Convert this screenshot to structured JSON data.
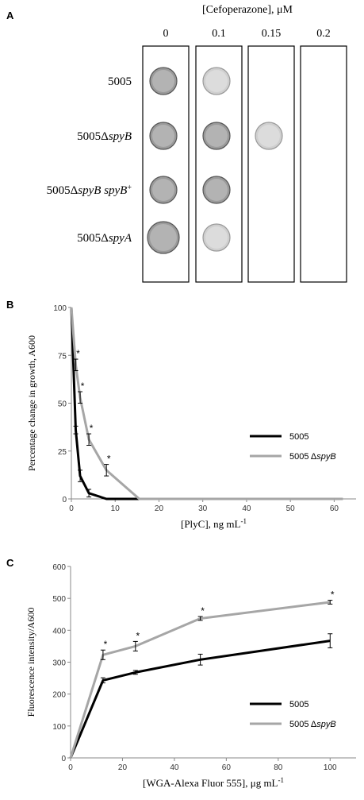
{
  "panel_a": {
    "letter": "A",
    "title": "[Cefoperazone],  μM",
    "concentrations": [
      "0",
      "0.1",
      "0.15",
      "0.2"
    ],
    "strains": [
      {
        "base": "5005",
        "italic": "",
        "suffix": "",
        "sup": ""
      },
      {
        "base": "5005Δ",
        "italic": "spyB",
        "suffix": "",
        "sup": ""
      },
      {
        "base": "5005Δ",
        "italic": "spyB spyB",
        "suffix": "",
        "sup": "+"
      },
      {
        "base": "5005Δ",
        "italic": "spyA",
        "suffix": "",
        "sup": ""
      }
    ],
    "growth": [
      [
        true,
        true,
        false,
        false
      ],
      [
        true,
        true,
        true,
        false
      ],
      [
        true,
        true,
        false,
        false
      ],
      [
        true,
        true,
        false,
        false
      ]
    ]
  },
  "chart_data": [
    {
      "type": "line",
      "panel": "B",
      "ylabel": "Percentage change in growth, A600",
      "xlabel_main": "[PlyC],  ng mL",
      "xlabel_sup": "-1",
      "xlim": [
        0,
        65
      ],
      "ylim": [
        0,
        100
      ],
      "xticks": [
        0,
        10,
        20,
        30,
        40,
        50,
        60
      ],
      "yticks": [
        0,
        25,
        50,
        75,
        100
      ],
      "legend_position": "right",
      "series": [
        {
          "name": "5005",
          "color": "#000000",
          "width": 3,
          "x": [
            0,
            1,
            2,
            4,
            8,
            16
          ],
          "y": [
            100,
            36,
            12,
            3,
            0,
            0
          ],
          "err": [
            0,
            2,
            3,
            2,
            0,
            0
          ],
          "star": [
            false,
            false,
            false,
            false,
            false,
            false
          ]
        },
        {
          "name_base": "5005 Δ",
          "name_italic": "spyB",
          "color": "#a6a6a6",
          "width": 3,
          "x": [
            0,
            1,
            2,
            4,
            8,
            15.5,
            62
          ],
          "y": [
            100,
            70,
            53,
            31,
            15,
            0,
            0
          ],
          "err": [
            0,
            3,
            3,
            3,
            3,
            0,
            0
          ],
          "star": [
            false,
            true,
            true,
            true,
            true,
            false,
            false
          ]
        }
      ],
      "star_label": "*"
    },
    {
      "type": "line",
      "panel": "C",
      "ylabel": "Fluorescence intensity/A600",
      "xlabel_main": "[WGA-Alexa  Fluor 555],  μg mL",
      "xlabel_sup": "-1",
      "xlim": [
        0,
        110
      ],
      "ylim": [
        0,
        600
      ],
      "xticks": [
        0,
        20,
        40,
        60,
        80,
        100
      ],
      "yticks": [
        0,
        100,
        200,
        300,
        400,
        500,
        600
      ],
      "legend_position": "bottom-right",
      "series": [
        {
          "name": "5005",
          "color": "#000000",
          "width": 3,
          "x": [
            0,
            12.5,
            25,
            50,
            100
          ],
          "y": [
            0,
            243,
            268,
            308,
            367
          ],
          "err": [
            0,
            8,
            6,
            17,
            22
          ],
          "star": [
            false,
            false,
            false,
            false,
            false
          ]
        },
        {
          "name_base": "5005 Δ",
          "name_italic": "spyB",
          "color": "#a6a6a6",
          "width": 3,
          "x": [
            0,
            12.5,
            25,
            50,
            100
          ],
          "y": [
            0,
            323,
            350,
            437,
            488
          ],
          "err": [
            0,
            15,
            15,
            6,
            6
          ],
          "star": [
            false,
            true,
            true,
            true,
            true
          ]
        }
      ],
      "star_label": "*"
    }
  ]
}
